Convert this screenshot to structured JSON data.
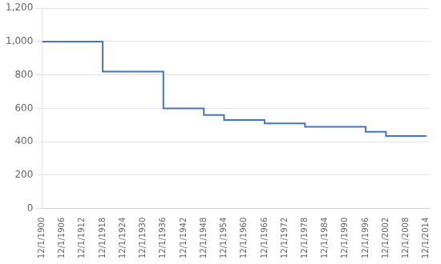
{
  "chart_data": {
    "type": "line",
    "x": [
      1900,
      1918,
      1918,
      1936,
      1936,
      1948,
      1948,
      1954,
      1954,
      1966,
      1966,
      1978,
      1978,
      1996,
      1996,
      2002,
      2002,
      2014
    ],
    "values": [
      1000,
      1000,
      820,
      820,
      600,
      600,
      560,
      560,
      530,
      530,
      510,
      510,
      490,
      490,
      460,
      460,
      435,
      435
    ],
    "color": "#4472C4",
    "xlim": [
      1900,
      2015
    ],
    "xticks": [
      {
        "value": 1900,
        "label": "12/1/1900"
      },
      {
        "value": 1906,
        "label": "12/1/1906"
      },
      {
        "value": 1912,
        "label": "12/1/1912"
      },
      {
        "value": 1918,
        "label": "12/1/1918"
      },
      {
        "value": 1924,
        "label": "12/1/1924"
      },
      {
        "value": 1930,
        "label": "12/1/1930"
      },
      {
        "value": 1936,
        "label": "12/1/1936"
      },
      {
        "value": 1942,
        "label": "12/1/1942"
      },
      {
        "value": 1948,
        "label": "12/1/1948"
      },
      {
        "value": 1954,
        "label": "12/1/1954"
      },
      {
        "value": 1960,
        "label": "12/1/1960"
      },
      {
        "value": 1966,
        "label": "12/1/1966"
      },
      {
        "value": 1972,
        "label": "12/1/1972"
      },
      {
        "value": 1978,
        "label": "12/1/1978"
      },
      {
        "value": 1984,
        "label": "12/1/1984"
      },
      {
        "value": 1990,
        "label": "12/1/1990"
      },
      {
        "value": 1996,
        "label": "12/1/1996"
      },
      {
        "value": 2002,
        "label": "12/1/2002"
      },
      {
        "value": 2008,
        "label": "12/1/2008"
      },
      {
        "value": 2014,
        "label": "12/1/2014"
      }
    ],
    "ylim": [
      0,
      1200
    ],
    "yticks": [
      0,
      200,
      400,
      600,
      800,
      {
        "value": 1000,
        "label": "1,000"
      },
      {
        "value": 1200,
        "label": "1,200"
      }
    ],
    "grid": "y"
  }
}
